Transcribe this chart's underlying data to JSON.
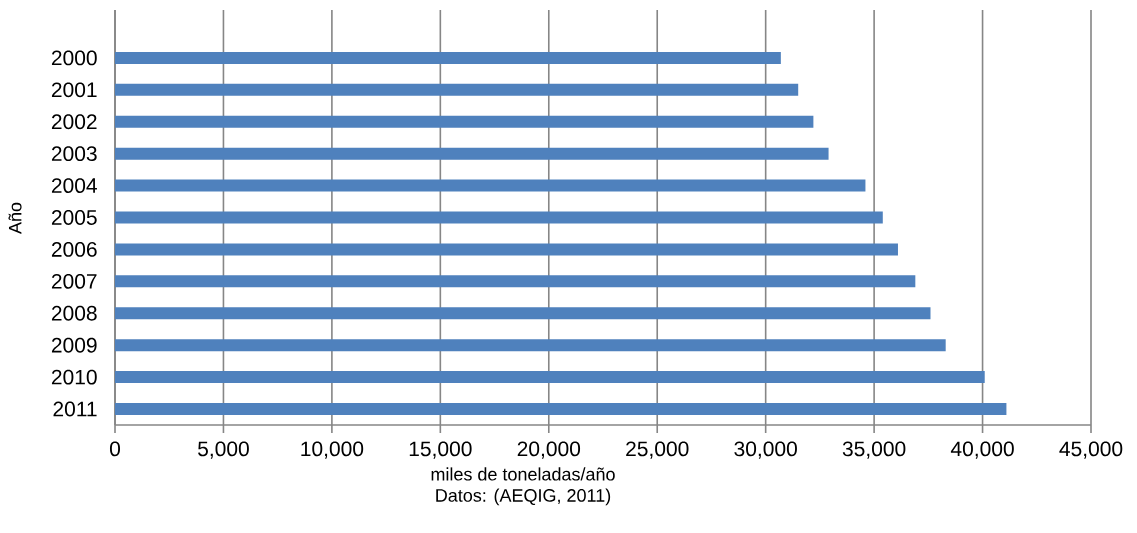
{
  "chart_data": {
    "type": "bar",
    "orientation": "horizontal",
    "xlabel": "miles de toneladas/año",
    "ylabel": "Año",
    "annotations": [
      "Datos: (AEQIG, 2011)"
    ],
    "categories": [
      null,
      "2000",
      "2001",
      "2002",
      "2003",
      "2004",
      "2005",
      "2006",
      "2007",
      "2008",
      "2009",
      "2010",
      "2011"
    ],
    "values": [
      null,
      30700,
      31500,
      32200,
      32900,
      34600,
      35400,
      36100,
      36900,
      37600,
      38300,
      40100,
      41100
    ],
    "color": "#4f81bd",
    "xlim": [
      0,
      45000
    ],
    "xticks": [
      {
        "value": 0,
        "label": "0"
      },
      {
        "value": 5000,
        "label": "5,000"
      },
      {
        "value": 10000,
        "label": "10,000"
      },
      {
        "value": 15000,
        "label": "15,000"
      },
      {
        "value": 20000,
        "label": "20,000"
      },
      {
        "value": 25000,
        "label": "25,000"
      },
      {
        "value": 30000,
        "label": "30,000"
      },
      {
        "value": 35000,
        "label": "35,000"
      },
      {
        "value": 40000,
        "label": "40,000"
      },
      {
        "value": 45000,
        "label": "45,000"
      }
    ],
    "grid": "x"
  }
}
